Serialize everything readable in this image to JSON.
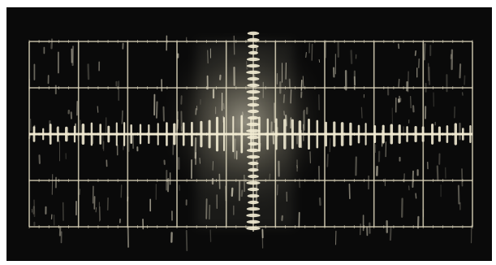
{
  "photo": {
    "subject": "oscilloscope-screen",
    "colors": {
      "frame": "#ffffff",
      "screen": "#0a0a0a",
      "trace": "#f1ead2",
      "graticule": "#d9d2b8"
    },
    "graticule": {
      "columns": 9,
      "rows": 4
    }
  }
}
